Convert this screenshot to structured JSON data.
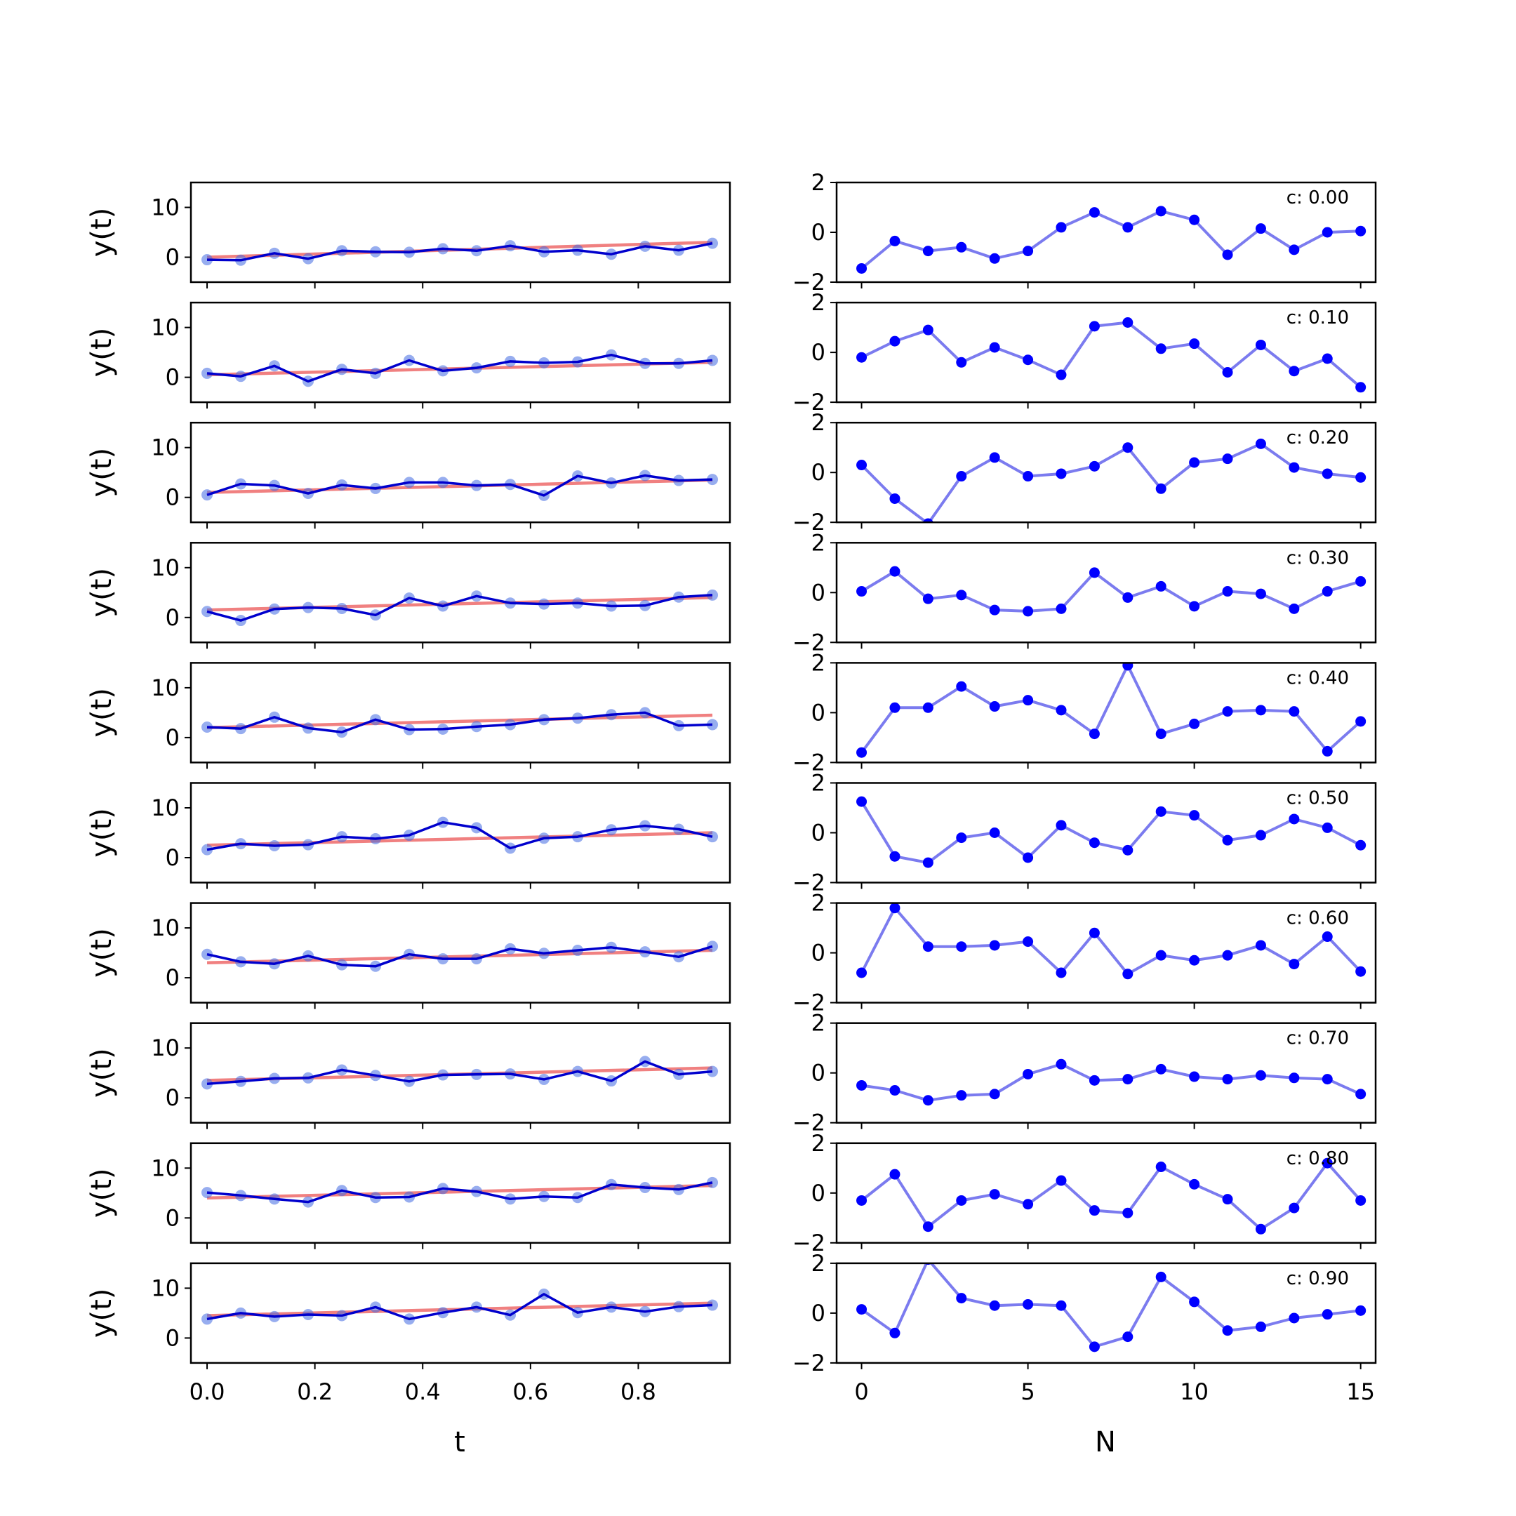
{
  "colors": {
    "trend": "#f08080",
    "series": "#0000cd",
    "points": "#4169e1",
    "noise": "#0000ff",
    "noise_line": "#7b7bef",
    "axes": "#000000"
  },
  "chart_data": [
    {
      "type": "line",
      "panel": "left",
      "xlabel": "t",
      "ylabel": "y(t)",
      "xlim": [
        -0.03,
        0.97
      ],
      "ylim": [
        -5,
        15
      ],
      "xticks": [
        0.0,
        0.2,
        0.4,
        0.6,
        0.8
      ],
      "xtick_labels": [
        "0.0",
        "0.2",
        "0.4",
        "0.6",
        "0.8"
      ],
      "yticks": [
        0,
        10
      ],
      "ytick_labels": [
        "0",
        "10"
      ],
      "x": [
        0.0,
        0.0625,
        0.125,
        0.1875,
        0.25,
        0.3125,
        0.375,
        0.4375,
        0.5,
        0.5625,
        0.625,
        0.6875,
        0.75,
        0.8125,
        0.875,
        0.9375
      ],
      "rows": [
        {
          "trend": [
            0.0,
            3.0
          ],
          "values": [
            -0.5,
            -0.6,
            0.8,
            -0.3,
            1.3,
            1.1,
            1.0,
            1.7,
            1.3,
            2.3,
            1.1,
            1.4,
            0.6,
            2.2,
            1.4,
            2.8
          ]
        },
        {
          "trend": [
            0.5,
            3.0
          ],
          "values": [
            0.8,
            0.2,
            2.3,
            -0.8,
            1.6,
            0.8,
            3.4,
            1.3,
            1.9,
            3.2,
            2.9,
            3.1,
            4.5,
            2.8,
            2.8,
            3.4
          ]
        },
        {
          "trend": [
            1.0,
            3.5
          ],
          "values": [
            0.5,
            2.7,
            2.4,
            0.8,
            2.5,
            1.8,
            3.0,
            3.0,
            2.4,
            2.6,
            0.4,
            4.3,
            2.9,
            4.4,
            3.4,
            3.6
          ]
        },
        {
          "trend": [
            1.5,
            4.0
          ],
          "values": [
            1.2,
            -0.6,
            1.7,
            2.0,
            1.8,
            0.5,
            3.9,
            2.3,
            4.3,
            2.9,
            2.7,
            2.9,
            2.3,
            2.4,
            4.1,
            4.5
          ]
        },
        {
          "trend": [
            2.0,
            4.5
          ],
          "values": [
            2.1,
            1.8,
            4.1,
            1.9,
            1.1,
            3.6,
            1.6,
            1.7,
            2.2,
            2.6,
            3.6,
            3.9,
            4.6,
            5.0,
            2.4,
            2.6
          ]
        },
        {
          "trend": [
            2.5,
            5.0
          ],
          "values": [
            1.6,
            2.8,
            2.4,
            2.6,
            4.2,
            3.8,
            4.5,
            7.1,
            6.0,
            1.9,
            3.9,
            4.2,
            5.6,
            6.4,
            5.7,
            4.2
          ]
        },
        {
          "trend": [
            3.0,
            5.5
          ],
          "values": [
            4.7,
            3.2,
            2.8,
            4.4,
            2.6,
            2.3,
            4.7,
            3.8,
            3.8,
            5.8,
            4.9,
            5.5,
            6.1,
            5.2,
            4.2,
            6.3
          ]
        },
        {
          "trend": [
            3.5,
            6.0
          ],
          "values": [
            2.8,
            3.3,
            3.9,
            4.0,
            5.6,
            4.5,
            3.3,
            4.6,
            4.7,
            4.8,
            3.7,
            5.3,
            3.4,
            7.3,
            4.7,
            5.3
          ]
        },
        {
          "trend": [
            4.0,
            6.5
          ],
          "values": [
            5.1,
            4.5,
            3.8,
            3.2,
            5.5,
            4.1,
            4.2,
            5.9,
            5.3,
            3.8,
            4.3,
            4.1,
            6.7,
            6.1,
            5.7,
            7.1
          ]
        },
        {
          "trend": [
            4.5,
            7.0
          ],
          "values": [
            3.8,
            5.0,
            4.3,
            4.7,
            4.5,
            6.2,
            3.8,
            5.1,
            6.2,
            4.6,
            8.8,
            5.1,
            6.2,
            5.3,
            6.3,
            6.6
          ]
        }
      ]
    },
    {
      "type": "line",
      "panel": "right",
      "xlabel": "N",
      "ylabel": "",
      "xlim": [
        -0.75,
        15.45
      ],
      "ylim": [
        -2,
        2
      ],
      "xticks": [
        0,
        5,
        10,
        15
      ],
      "xtick_labels": [
        "0",
        "5",
        "10",
        "15"
      ],
      "yticks": [
        -2,
        0,
        2
      ],
      "ytick_labels": [
        "−2",
        "0",
        "2"
      ],
      "x": [
        0,
        1,
        2,
        3,
        4,
        5,
        6,
        7,
        8,
        9,
        10,
        11,
        12,
        13,
        14,
        15
      ],
      "rows": [
        {
          "label": "c: 0.00",
          "values": [
            -1.45,
            -0.35,
            -0.75,
            -0.6,
            -1.05,
            -0.75,
            0.2,
            0.8,
            0.2,
            0.85,
            0.5,
            -0.9,
            0.15,
            -0.7,
            0.0,
            0.05
          ]
        },
        {
          "label": "c: 0.10",
          "values": [
            -0.2,
            0.45,
            0.9,
            -0.4,
            0.2,
            -0.3,
            -0.9,
            1.05,
            1.2,
            0.15,
            0.35,
            -0.8,
            0.3,
            -0.75,
            -0.25,
            -1.4
          ]
        },
        {
          "label": "c: 0.20",
          "values": [
            0.3,
            -1.05,
            -2.05,
            -0.15,
            0.6,
            -0.15,
            -0.05,
            0.25,
            1.0,
            -0.65,
            0.4,
            0.55,
            1.15,
            0.2,
            -0.05,
            -0.2
          ]
        },
        {
          "label": "c: 0.30",
          "values": [
            0.05,
            0.85,
            -0.25,
            -0.1,
            -0.7,
            -0.75,
            -0.65,
            0.8,
            -0.2,
            0.25,
            -0.55,
            0.05,
            -0.05,
            -0.65,
            0.05,
            0.45
          ]
        },
        {
          "label": "c: 0.40",
          "values": [
            -1.6,
            0.2,
            0.2,
            1.05,
            0.25,
            0.5,
            0.1,
            -0.85,
            1.9,
            -0.85,
            -0.45,
            0.05,
            0.1,
            0.05,
            -1.55,
            -0.35
          ]
        },
        {
          "label": "c: 0.50",
          "values": [
            1.25,
            -0.95,
            -1.2,
            -0.2,
            0.0,
            -1.0,
            0.3,
            -0.4,
            -0.7,
            0.85,
            0.7,
            -0.3,
            -0.1,
            0.55,
            0.2,
            -0.5
          ]
        },
        {
          "label": "c: 0.60",
          "values": [
            -0.8,
            1.8,
            0.25,
            0.25,
            0.3,
            0.45,
            -0.8,
            0.8,
            -0.85,
            -0.1,
            -0.3,
            -0.1,
            0.3,
            -0.45,
            0.65,
            -0.75
          ]
        },
        {
          "label": "c: 0.70",
          "values": [
            -0.5,
            -0.7,
            -1.1,
            -0.9,
            -0.85,
            -0.05,
            0.35,
            -0.3,
            -0.25,
            0.15,
            -0.15,
            -0.25,
            -0.1,
            -0.2,
            -0.25,
            -0.85
          ]
        },
        {
          "label": "c: 0.80",
          "values": [
            -0.3,
            0.75,
            -1.35,
            -0.3,
            -0.05,
            -0.45,
            0.5,
            -0.7,
            -0.8,
            1.05,
            0.35,
            -0.25,
            -1.45,
            -0.6,
            1.2,
            -0.3
          ]
        },
        {
          "label": "c: 0.90",
          "values": [
            0.15,
            -0.8,
            2.15,
            0.6,
            0.3,
            0.35,
            0.3,
            -1.35,
            -0.95,
            1.45,
            0.45,
            -0.7,
            -0.55,
            -0.2,
            -0.05,
            0.1
          ]
        }
      ]
    }
  ]
}
